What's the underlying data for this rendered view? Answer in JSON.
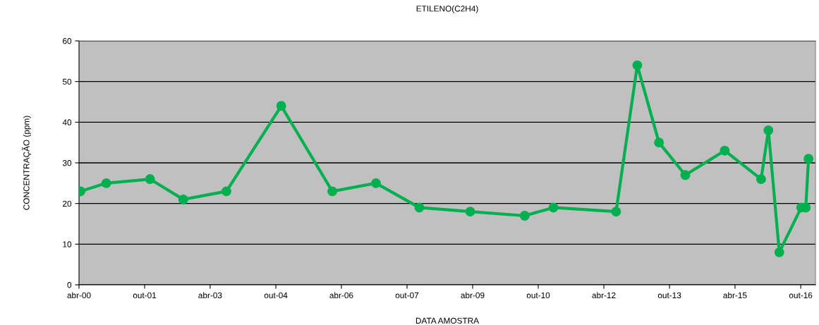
{
  "chart_data": {
    "type": "line",
    "title": "ETILENO(C2H4)",
    "xlabel": "DATA AMOSTRA",
    "ylabel": "CONCENTRAÇÃO (ppm)",
    "x": [
      "2000-04-13",
      "2000-11-15",
      "2001-11-15",
      "2002-08-20",
      "2003-08-15",
      "2004-11-15",
      "2006-01-15",
      "2007-01-15",
      "2008-01-12",
      "2009-03-12",
      "2010-06-10",
      "2011-02-05",
      "2012-07-12",
      "2013-01-05",
      "2013-07-05",
      "2014-02-10",
      "2015-01-05",
      "2015-11-05",
      "2016-01-05",
      "2016-04-05",
      "2016-10-05",
      "2016-11-12",
      "2016-12-05"
    ],
    "series": [
      {
        "color": "#00b050",
        "values": [
          23,
          25,
          26,
          21,
          23,
          44,
          23,
          25,
          19,
          18,
          17,
          19,
          18,
          54,
          35,
          27,
          33,
          26,
          38,
          8,
          19,
          19,
          31
        ]
      }
    ],
    "xlim": [
      "2000-04-01",
      "2017-02-01"
    ],
    "xticks": [
      {
        "value": "2000-04-01",
        "label": "abr-00"
      },
      {
        "value": "2001-10-01",
        "label": "out-01"
      },
      {
        "value": "2003-04-01",
        "label": "abr-03"
      },
      {
        "value": "2004-10-01",
        "label": "out-04"
      },
      {
        "value": "2006-04-01",
        "label": "abr-06"
      },
      {
        "value": "2007-10-01",
        "label": "out-07"
      },
      {
        "value": "2009-04-01",
        "label": "abr-09"
      },
      {
        "value": "2010-10-01",
        "label": "out-10"
      },
      {
        "value": "2012-04-01",
        "label": "abr-12"
      },
      {
        "value": "2013-10-01",
        "label": "out-13"
      },
      {
        "value": "2015-04-01",
        "label": "abr-15"
      },
      {
        "value": "2016-10-01",
        "label": "out-16"
      }
    ],
    "ylim": [
      0,
      60
    ],
    "yticks": [
      0,
      10,
      20,
      30,
      40,
      50,
      60
    ],
    "grid": "y",
    "marker": "circle",
    "line_style": "solid"
  }
}
